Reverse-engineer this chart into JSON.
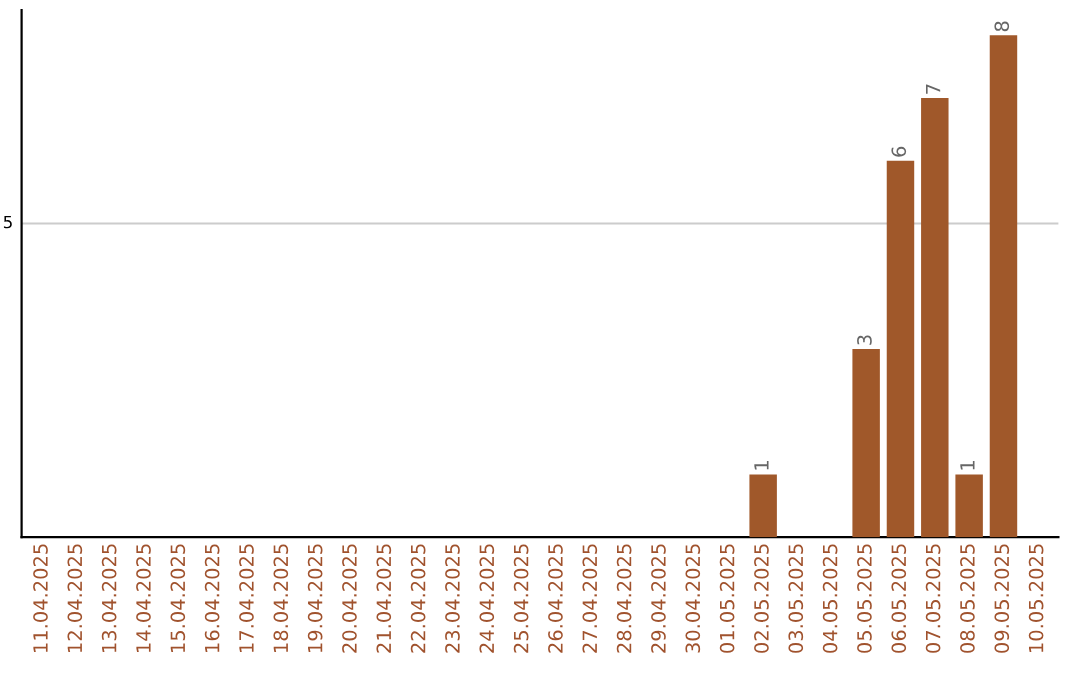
{
  "chart_data": {
    "type": "bar",
    "categories": [
      "11.04.2025",
      "12.04.2025",
      "13.04.2025",
      "14.04.2025",
      "15.04.2025",
      "16.04.2025",
      "17.04.2025",
      "18.04.2025",
      "19.04.2025",
      "20.04.2025",
      "21.04.2025",
      "22.04.2025",
      "23.04.2025",
      "24.04.2025",
      "25.04.2025",
      "26.04.2025",
      "27.04.2025",
      "28.04.2025",
      "29.04.2025",
      "30.04.2025",
      "01.05.2025",
      "02.05.2025",
      "03.05.2025",
      "04.05.2025",
      "05.05.2025",
      "06.05.2025",
      "07.05.2025",
      "08.05.2025",
      "09.05.2025",
      "10.05.2025"
    ],
    "values": [
      null,
      null,
      null,
      null,
      null,
      null,
      null,
      null,
      null,
      null,
      null,
      null,
      null,
      null,
      null,
      null,
      null,
      null,
      null,
      null,
      null,
      1,
      null,
      null,
      3,
      6,
      7,
      1,
      8,
      null
    ],
    "data_labels": true,
    "ylim": [
      0,
      8.4
    ],
    "ref_lines": [
      {
        "axis": "y",
        "value": 5,
        "label": "5",
        "color": "#cccccc"
      }
    ],
    "color": "#a0582a",
    "grid": false
  }
}
